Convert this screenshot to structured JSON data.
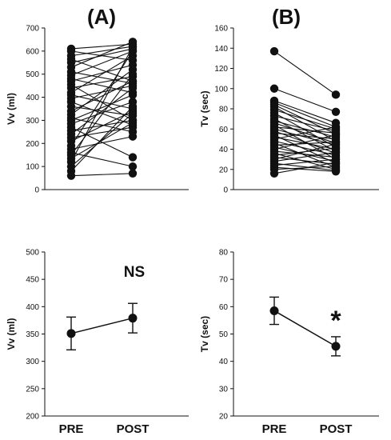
{
  "chart_data": [
    {
      "panel": "top-left",
      "title": "(A)",
      "type": "line",
      "ylabel": "Vv (ml)",
      "ylim": [
        0,
        700
      ],
      "yticks": [
        0,
        100,
        200,
        300,
        400,
        500,
        600,
        700
      ],
      "categories": [
        "PRE",
        "POST"
      ],
      "pairs": [
        [
          610,
          630
        ],
        [
          600,
          560
        ],
        [
          580,
          620
        ],
        [
          565,
          470
        ],
        [
          550,
          610
        ],
        [
          530,
          640
        ],
        [
          510,
          460
        ],
        [
          495,
          600
        ],
        [
          480,
          420
        ],
        [
          470,
          540
        ],
        [
          455,
          300
        ],
        [
          440,
          490
        ],
        [
          420,
          580
        ],
        [
          410,
          350
        ],
        [
          395,
          450
        ],
        [
          380,
          280
        ],
        [
          360,
          320
        ],
        [
          340,
          470
        ],
        [
          325,
          520
        ],
        [
          310,
          250
        ],
        [
          300,
          410
        ],
        [
          285,
          380
        ],
        [
          270,
          140
        ],
        [
          255,
          300
        ],
        [
          240,
          440
        ],
        [
          225,
          270
        ],
        [
          210,
          340
        ],
        [
          190,
          600
        ],
        [
          175,
          230
        ],
        [
          160,
          100
        ],
        [
          150,
          500
        ],
        [
          135,
          290
        ],
        [
          120,
          620
        ],
        [
          100,
          330
        ],
        [
          80,
          360
        ],
        [
          60,
          70
        ]
      ]
    },
    {
      "panel": "top-right",
      "title": "(B)",
      "type": "line",
      "ylabel": "Tv (sec)",
      "ylim": [
        0,
        160
      ],
      "yticks": [
        0,
        20,
        40,
        60,
        80,
        100,
        120,
        140,
        160
      ],
      "categories": [
        "PRE",
        "POST"
      ],
      "pairs": [
        [
          137,
          94
        ],
        [
          100,
          77
        ],
        [
          88,
          66
        ],
        [
          86,
          62
        ],
        [
          84,
          55
        ],
        [
          82,
          48
        ],
        [
          79,
          60
        ],
        [
          76,
          42
        ],
        [
          73,
          58
        ],
        [
          70,
          38
        ],
        [
          68,
          52
        ],
        [
          66,
          46
        ],
        [
          64,
          30
        ],
        [
          62,
          56
        ],
        [
          60,
          44
        ],
        [
          58,
          36
        ],
        [
          56,
          50
        ],
        [
          54,
          26
        ],
        [
          52,
          40
        ],
        [
          50,
          62
        ],
        [
          48,
          34
        ],
        [
          46,
          22
        ],
        [
          44,
          47
        ],
        [
          42,
          28
        ],
        [
          40,
          54
        ],
        [
          38,
          32
        ],
        [
          36,
          20
        ],
        [
          34,
          41
        ],
        [
          32,
          25
        ],
        [
          30,
          45
        ],
        [
          28,
          37
        ],
        [
          26,
          19
        ],
        [
          24,
          30
        ],
        [
          22,
          18
        ],
        [
          20,
          23
        ],
        [
          16,
          27
        ]
      ]
    },
    {
      "panel": "bottom-left",
      "type": "line",
      "ylabel": "Vv (ml)",
      "ylim": [
        200,
        500
      ],
      "yticks": [
        200,
        250,
        300,
        350,
        400,
        450,
        500
      ],
      "categories": [
        "PRE",
        "POST"
      ],
      "means": [
        351,
        379
      ],
      "errors": [
        30,
        27
      ],
      "annotation": "NS"
    },
    {
      "panel": "bottom-right",
      "type": "line",
      "ylabel": "Tv (sec)",
      "ylim": [
        20,
        80
      ],
      "yticks": [
        20,
        30,
        40,
        50,
        60,
        70,
        80
      ],
      "categories": [
        "PRE",
        "POST"
      ],
      "means": [
        58.5,
        45.5
      ],
      "errors": [
        5,
        3.5
      ],
      "annotation": "*"
    }
  ]
}
